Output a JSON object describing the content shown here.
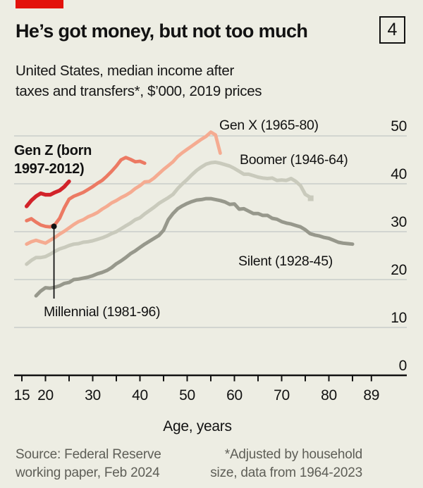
{
  "header": {
    "tag_color": "#E3120B",
    "title": "He’s got money, but not too much",
    "issue_number": "4",
    "subtitle_line1": "United States, median income after",
    "subtitle_line2": "taxes and transfers*, $’000, 2019 prices"
  },
  "chart_data": {
    "type": "line",
    "title": "United States, median income after taxes and transfers, $’000, 2019 prices",
    "xlabel": "Age, years",
    "ylabel": "$’000, 2019 prices",
    "xlim": [
      15,
      89
    ],
    "ylim": [
      0,
      50
    ],
    "grid": true,
    "legend_position": "inline-labels",
    "x_ticks_labeled": [
      15,
      20,
      30,
      40,
      50,
      60,
      70,
      80,
      89
    ],
    "x_ticks_minor": [
      15,
      20,
      25,
      30,
      35,
      40,
      45,
      50,
      55,
      60,
      65,
      70,
      75,
      80,
      85,
      89
    ],
    "y_axis_labels": [
      0,
      10,
      20,
      30,
      40,
      50
    ],
    "y_gridlines": [
      10,
      20,
      30,
      40,
      50
    ],
    "colors": {
      "gen_z": "#D2232A",
      "millennial": "#EC7A63",
      "gen_x": "#F5AB91",
      "boomer": "#C9CABC",
      "silent": "#97988C",
      "gridline": "#C3C7C4",
      "axis": "#121212"
    },
    "annotation": {
      "series": "millennial",
      "age": 21.8,
      "value": 31.1
    },
    "series": [
      {
        "id": "silent",
        "name": "Silent",
        "label_lines": [
          "Silent (1928-45)"
        ],
        "color": "#97988C",
        "points": [
          [
            18,
            16.6
          ],
          [
            19,
            17.6
          ],
          [
            20,
            18.3
          ],
          [
            21,
            18.2
          ],
          [
            22,
            18.4
          ],
          [
            23,
            18.7
          ],
          [
            24,
            19.2
          ],
          [
            25,
            19.4
          ],
          [
            26,
            20.0
          ],
          [
            27,
            20.1
          ],
          [
            28,
            20.3
          ],
          [
            29,
            20.5
          ],
          [
            30,
            20.8
          ],
          [
            31,
            21.2
          ],
          [
            32,
            21.5
          ],
          [
            33,
            21.9
          ],
          [
            34,
            22.5
          ],
          [
            35,
            23.3
          ],
          [
            36,
            23.9
          ],
          [
            37,
            24.6
          ],
          [
            38,
            25.4
          ],
          [
            39,
            26.0
          ],
          [
            40,
            26.7
          ],
          [
            41,
            27.4
          ],
          [
            42,
            28.0
          ],
          [
            43,
            28.6
          ],
          [
            44,
            29.2
          ],
          [
            45,
            30.3
          ],
          [
            46,
            32.5
          ],
          [
            47,
            33.8
          ],
          [
            48,
            34.8
          ],
          [
            49,
            35.4
          ],
          [
            50,
            35.9
          ],
          [
            51,
            36.3
          ],
          [
            52,
            36.6
          ],
          [
            53,
            36.7
          ],
          [
            54,
            36.9
          ],
          [
            55,
            36.9
          ],
          [
            56,
            36.7
          ],
          [
            57,
            36.5
          ],
          [
            58,
            36.2
          ],
          [
            59,
            35.7
          ],
          [
            60,
            35.8
          ],
          [
            61,
            34.7
          ],
          [
            62,
            34.8
          ],
          [
            63,
            34.3
          ],
          [
            64,
            33.8
          ],
          [
            65,
            33.8
          ],
          [
            66,
            33.4
          ],
          [
            67,
            33.4
          ],
          [
            68,
            32.8
          ],
          [
            69,
            32.6
          ],
          [
            70,
            32.1
          ],
          [
            71,
            31.8
          ],
          [
            72,
            31.6
          ],
          [
            73,
            31.3
          ],
          [
            74,
            31.0
          ],
          [
            75,
            30.4
          ],
          [
            76,
            29.6
          ],
          [
            77,
            29.3
          ],
          [
            78,
            29.1
          ],
          [
            79,
            28.8
          ],
          [
            80,
            28.6
          ],
          [
            81,
            28.2
          ],
          [
            82,
            27.8
          ],
          [
            83,
            27.6
          ],
          [
            84,
            27.5
          ],
          [
            85,
            27.4
          ]
        ]
      },
      {
        "id": "boomer",
        "name": "Boomer",
        "label_lines": [
          "Boomer (1946-64)"
        ],
        "color": "#C9CABC",
        "end_marker": "square",
        "points": [
          [
            16,
            23.2
          ],
          [
            17,
            24.0
          ],
          [
            18,
            24.6
          ],
          [
            19,
            24.6
          ],
          [
            20,
            24.8
          ],
          [
            21,
            25.3
          ],
          [
            22,
            25.9
          ],
          [
            23,
            26.4
          ],
          [
            24,
            26.7
          ],
          [
            25,
            27.1
          ],
          [
            26,
            27.4
          ],
          [
            27,
            27.5
          ],
          [
            28,
            27.8
          ],
          [
            29,
            27.9
          ],
          [
            30,
            28.1
          ],
          [
            31,
            28.4
          ],
          [
            32,
            28.7
          ],
          [
            33,
            29.1
          ],
          [
            34,
            29.6
          ],
          [
            35,
            30.0
          ],
          [
            36,
            30.6
          ],
          [
            37,
            31.2
          ],
          [
            38,
            31.8
          ],
          [
            39,
            32.5
          ],
          [
            40,
            32.9
          ],
          [
            41,
            33.7
          ],
          [
            42,
            34.4
          ],
          [
            43,
            35.1
          ],
          [
            44,
            35.9
          ],
          [
            45,
            36.5
          ],
          [
            46,
            37.1
          ],
          [
            47,
            37.8
          ],
          [
            48,
            39.0
          ],
          [
            49,
            40.0
          ],
          [
            50,
            40.9
          ],
          [
            51,
            41.9
          ],
          [
            52,
            42.8
          ],
          [
            53,
            43.5
          ],
          [
            54,
            44.1
          ],
          [
            55,
            44.4
          ],
          [
            56,
            44.5
          ],
          [
            57,
            44.3
          ],
          [
            58,
            44.0
          ],
          [
            59,
            43.7
          ],
          [
            60,
            43.2
          ],
          [
            61,
            42.6
          ],
          [
            62,
            42.0
          ],
          [
            63,
            42.0
          ],
          [
            64,
            41.7
          ],
          [
            65,
            41.4
          ],
          [
            66,
            41.2
          ],
          [
            67,
            41.1
          ],
          [
            68,
            41.2
          ],
          [
            69,
            40.7
          ],
          [
            70,
            40.8
          ],
          [
            71,
            40.7
          ],
          [
            72,
            41.1
          ],
          [
            73,
            40.5
          ],
          [
            74,
            39.6
          ],
          [
            75,
            37.8
          ],
          [
            76,
            37.2
          ]
        ]
      },
      {
        "id": "gen_x",
        "name": "Gen X",
        "label_lines": [
          "Gen X (1965-80)"
        ],
        "color": "#F5AB91",
        "points": [
          [
            16,
            27.4
          ],
          [
            17,
            27.9
          ],
          [
            18,
            28.2
          ],
          [
            19,
            27.9
          ],
          [
            20,
            27.6
          ],
          [
            21,
            28.2
          ],
          [
            22,
            28.8
          ],
          [
            23,
            29.5
          ],
          [
            24,
            30.1
          ],
          [
            25,
            30.8
          ],
          [
            26,
            31.5
          ],
          [
            27,
            32.1
          ],
          [
            28,
            32.5
          ],
          [
            29,
            33.1
          ],
          [
            30,
            33.5
          ],
          [
            31,
            34.0
          ],
          [
            32,
            34.7
          ],
          [
            33,
            35.3
          ],
          [
            34,
            36.0
          ],
          [
            35,
            36.5
          ],
          [
            36,
            37.1
          ],
          [
            37,
            37.6
          ],
          [
            38,
            38.2
          ],
          [
            39,
            39.0
          ],
          [
            40,
            39.6
          ],
          [
            41,
            40.4
          ],
          [
            42,
            40.5
          ],
          [
            43,
            41.2
          ],
          [
            44,
            42.1
          ],
          [
            45,
            43.0
          ],
          [
            46,
            43.8
          ],
          [
            47,
            44.6
          ],
          [
            48,
            45.7
          ],
          [
            49,
            46.5
          ],
          [
            50,
            47.2
          ],
          [
            51,
            47.9
          ],
          [
            52,
            48.6
          ],
          [
            53,
            49.3
          ],
          [
            54,
            49.9
          ],
          [
            55,
            50.8
          ],
          [
            56,
            50.2
          ],
          [
            57,
            46.4
          ]
        ]
      },
      {
        "id": "millennial",
        "name": "Millennial",
        "label_lines": [
          "Millennial (1981-96)"
        ],
        "color": "#EC7A63",
        "points": [
          [
            16,
            32.3
          ],
          [
            17,
            32.7
          ],
          [
            18,
            32.0
          ],
          [
            19,
            31.4
          ],
          [
            20,
            31.1
          ],
          [
            21,
            31.0
          ],
          [
            22,
            31.5
          ],
          [
            23,
            32.8
          ],
          [
            24,
            35.0
          ],
          [
            25,
            36.8
          ],
          [
            26,
            37.4
          ],
          [
            27,
            37.8
          ],
          [
            28,
            38.2
          ],
          [
            29,
            38.8
          ],
          [
            30,
            39.4
          ],
          [
            31,
            40.1
          ],
          [
            32,
            40.7
          ],
          [
            33,
            41.6
          ],
          [
            34,
            42.6
          ],
          [
            35,
            43.7
          ],
          [
            36,
            45.0
          ],
          [
            37,
            45.5
          ],
          [
            38,
            45.1
          ],
          [
            39,
            44.6
          ],
          [
            40,
            44.7
          ],
          [
            41,
            44.3
          ]
        ]
      },
      {
        "id": "gen_z",
        "name": "Gen Z",
        "label_lines": [
          "Gen Z (born",
          "1997-2012)"
        ],
        "color": "#D2232A",
        "points": [
          [
            16,
            35.3
          ],
          [
            17,
            36.5
          ],
          [
            18,
            37.4
          ],
          [
            19,
            38.0
          ],
          [
            20,
            37.7
          ],
          [
            21,
            37.7
          ],
          [
            22,
            38.2
          ],
          [
            23,
            38.6
          ],
          [
            24,
            39.4
          ],
          [
            25,
            40.5
          ]
        ]
      }
    ]
  },
  "footer": {
    "source_line1": "Source: Federal Reserve",
    "source_line2": "working paper, Feb 2024",
    "footnote_line1": "*Adjusted by household",
    "footnote_line2": "size, data from 1964-2023"
  }
}
